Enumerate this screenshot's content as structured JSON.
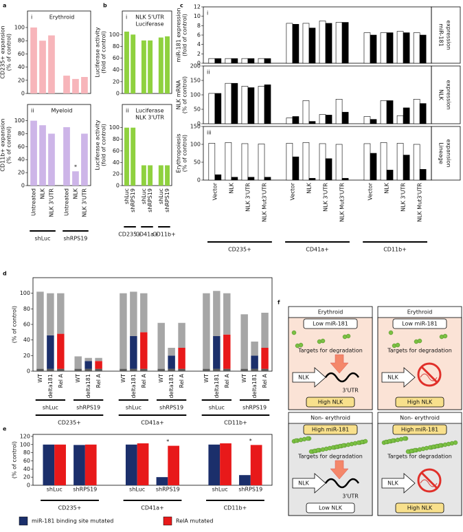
{
  "chart_data": [
    {
      "type": "bar",
      "label": "a",
      "categories": [
        "Untreated",
        "NLK",
        "NLK 3'UTR",
        "Untreated",
        "NLK",
        "NLK 3'UTR"
      ],
      "group_labels": [
        "shLuc",
        "shRPS19"
      ],
      "plots": [
        {
          "numeral": "i",
          "title": [
            "Erythroid"
          ],
          "ylabel": [
            "CD235+ expansion",
            "(% of control)"
          ],
          "ylim": [
            0,
            125
          ],
          "yticks": [
            0,
            20,
            40,
            60,
            80,
            100
          ],
          "series": [
            {
              "color": "#f7b5ba",
              "values": [
                100,
                80,
                88,
                27,
                22,
                25
              ]
            }
          ]
        },
        {
          "numeral": "ii",
          "title": [
            "Myeloid"
          ],
          "ylabel": [
            "CD11b+ expansion",
            "(% of control)"
          ],
          "ylim": [
            0,
            125
          ],
          "yticks": [
            0,
            20,
            40,
            60,
            80,
            100
          ],
          "series": [
            {
              "color": "#cdb5e8",
              "values": [
                100,
                93,
                80,
                90,
                22,
                80
              ]
            }
          ],
          "annotations": [
            {
              "text": "*",
              "category": 4
            }
          ]
        }
      ]
    },
    {
      "type": "bar",
      "label": "b",
      "categories": [
        "shLuc",
        "shRPS19",
        "shLuc",
        "shRPS19",
        "shLuc",
        "shRPS19"
      ],
      "group_labels": [
        "CD235+",
        "CD41a+",
        "CD11b+"
      ],
      "plots": [
        {
          "numeral": "i",
          "title": [
            "NLK 5'UTR",
            "Luciferase"
          ],
          "ylabel": [
            "Luciferase activity",
            "(fold of control)"
          ],
          "ylim": [
            0,
            140
          ],
          "yticks": [
            0,
            20,
            40,
            60,
            80,
            100
          ],
          "series": [
            {
              "color": "#8fd13f",
              "values": [
                105,
                100,
                90,
                90,
                95,
                97
              ]
            }
          ]
        },
        {
          "numeral": "ii",
          "title": [
            "Luciferase",
            "NLK 3'UTR"
          ],
          "ylabel": [
            "Luciferase activity",
            "(fold of control)"
          ],
          "ylim": [
            0,
            140
          ],
          "yticks": [
            0,
            20,
            40,
            60,
            80,
            100
          ],
          "series": [
            {
              "color": "#8fd13f",
              "values": [
                100,
                100,
                35,
                35,
                35,
                35
              ]
            }
          ]
        }
      ]
    },
    {
      "type": "bar",
      "label": "c",
      "categories": [
        "Vector",
        "NLK",
        "NLK 3'UTR",
        "NLK Mut3'UTR",
        "Vector",
        "NLK",
        "NLK 3'UTR",
        "NLK Mut3'UTR",
        "Vector",
        "NLK",
        "NLK 3'UTR",
        "NLK Mut3'UTR"
      ],
      "group_labels": [
        "CD235+",
        "CD41a+",
        "CD11b+"
      ],
      "plots": [
        {
          "numeral": "i",
          "ylabel": [
            "miR-181 expression",
            "(fold of control)"
          ],
          "side_label": [
            "miR-181",
            "expression"
          ],
          "ylim": [
            0,
            12
          ],
          "yticks": [
            0,
            2,
            4,
            6,
            8,
            10,
            12
          ],
          "series": [
            {
              "color": "#ffffff",
              "values": [
                1,
                1,
                1,
                1,
                8.5,
                8.5,
                9,
                8.7,
                6.5,
                6.5,
                6.8,
                6.5
              ]
            },
            {
              "color": "#000000",
              "values": [
                1,
                1,
                1,
                1,
                8.3,
                7.5,
                8.5,
                8.7,
                6,
                6.5,
                6.5,
                6
              ]
            }
          ]
        },
        {
          "numeral": "ii",
          "ylabel": [
            "NLK mRNA",
            "(% of control)"
          ],
          "side_label": [
            "NLK",
            "expression"
          ],
          "ylim": [
            0,
            200
          ],
          "yticks": [
            0,
            50,
            100,
            150,
            200
          ],
          "series": [
            {
              "color": "#ffffff",
              "values": [
                105,
                140,
                130,
                130,
                20,
                80,
                32,
                85,
                25,
                80,
                28,
                85
              ]
            },
            {
              "color": "#000000",
              "values": [
                105,
                140,
                125,
                135,
                25,
                8,
                30,
                40,
                15,
                80,
                55,
                70
              ]
            }
          ]
        },
        {
          "numeral": "iii",
          "ylabel": [
            "Erythropoiesis",
            "(% of control)"
          ],
          "side_label": [
            "Lineage",
            "expansion"
          ],
          "ylim": [
            0,
            150
          ],
          "yticks": [
            0,
            50,
            100,
            150
          ],
          "series": [
            {
              "color": "#ffffff",
              "values": [
                103,
                105,
                102,
                101,
                103,
                105,
                102,
                100,
                102,
                105,
                103,
                100
              ]
            },
            {
              "color": "#000000",
              "values": [
                15,
                8,
                8,
                8,
                65,
                5,
                60,
                5,
                75,
                28,
                70,
                30
              ]
            }
          ]
        }
      ]
    },
    {
      "type": "stacked_bar",
      "label": "d",
      "categories": [
        "WT",
        "delta181",
        "Rel A",
        "WT",
        "delta181",
        "Rel A",
        "WT",
        "delta181",
        "Rel A",
        "WT",
        "delta181",
        "Rel A",
        "WT",
        "delta181",
        "Rel A",
        "WT",
        "delta181",
        "Rel A"
      ],
      "group_labels": [
        "shLuc",
        "shRPS19",
        "shLuc",
        "shRPS19",
        "shLuc",
        "shRPS19"
      ],
      "outer_group_labels": [
        "CD235+",
        "CD41a+",
        "CD11b+"
      ],
      "plots": [
        {
          "ylabel": [
            "(% of control)"
          ],
          "ylim": [
            0,
            120
          ],
          "yticks": [
            0,
            20,
            40,
            60,
            80,
            100
          ],
          "series": [
            {
              "color": "#5a5a5a",
              "values": [
                3,
                3,
                3,
                3,
                3,
                3,
                3,
                3,
                3,
                3,
                3,
                3,
                3,
                3,
                3,
                3,
                3,
                3
              ]
            },
            {
              "color": "#1b2f6b",
              "values": [
                null,
                43,
                null,
                null,
                10,
                null,
                null,
                42,
                null,
                null,
                17,
                null,
                null,
                42,
                null,
                null,
                17,
                null
              ]
            },
            {
              "color": "#e8191a",
              "values": [
                null,
                null,
                45,
                null,
                null,
                10,
                null,
                null,
                47,
                null,
                null,
                27,
                null,
                null,
                44,
                null,
                null,
                27
              ]
            },
            {
              "color": "#a6a6a6",
              "values": [
                99,
                54,
                52,
                16,
                4,
                4,
                97,
                57,
                50,
                59,
                10,
                32,
                97,
                58,
                53,
                70,
                18,
                45
              ]
            }
          ]
        }
      ]
    },
    {
      "type": "bar",
      "label": "e",
      "categories": [
        "shLuc",
        "shRPS19",
        "shLuc",
        "shRPS19",
        "shLuc",
        "shRPS19"
      ],
      "group_labels": [
        "CD235+",
        "CD41a+",
        "CD11b+"
      ],
      "plots": [
        {
          "ylabel": [
            "(% of control)"
          ],
          "ylim": [
            0,
            125
          ],
          "yticks": [
            0,
            20,
            40,
            60,
            80,
            100,
            120
          ],
          "series": [
            {
              "name": "miR-181 binding site mutated",
              "color": "#1b2f6b",
              "values": [
                100,
                99,
                100,
                20,
                100,
                25
              ]
            },
            {
              "name": "RelA mutated",
              "color": "#e8191a",
              "values": [
                100,
                100,
                103,
                97,
                103,
                99
              ]
            }
          ],
          "annotations": [
            {
              "text": "*",
              "category": 3
            },
            {
              "text": "*",
              "category": 5
            }
          ]
        }
      ]
    }
  ],
  "diagram": {
    "label": "f",
    "boxes": [
      {
        "title": "Erythroid",
        "mirna": "Low miR-181",
        "targets": "Targets for degradation",
        "gene": "NLK",
        "utr": "3'UTR",
        "result": "High NLK",
        "color": "#fbe3d6",
        "mirna_color": "#ffffff",
        "result_color": "#f8e08c"
      },
      {
        "title": "Erythroid",
        "mirna": "Low miR-181",
        "targets": "Targets for degradation",
        "gene": "NLK",
        "result": "High NLK",
        "color": "#fbe3d6",
        "mirna_color": "#ffffff",
        "result_color": "#f8e08c"
      },
      {
        "title": "Non- erythroid",
        "mirna": "High miR-181",
        "targets": "Targets for degradation",
        "gene": "NLK",
        "utr": "3'UTR",
        "result": "Low NLK",
        "color": "#e6e6e6",
        "mirna_color": "#f8e08c",
        "result_color": "#ffffff"
      },
      {
        "title": "Non- erythroid",
        "mirna": "High miR-181",
        "targets": "Targets for degradation",
        "gene": "NLK",
        "result": "High NLK",
        "color": "#e6e6e6",
        "mirna_color": "#f8e08c",
        "result_color": "#f8e08c"
      }
    ]
  }
}
